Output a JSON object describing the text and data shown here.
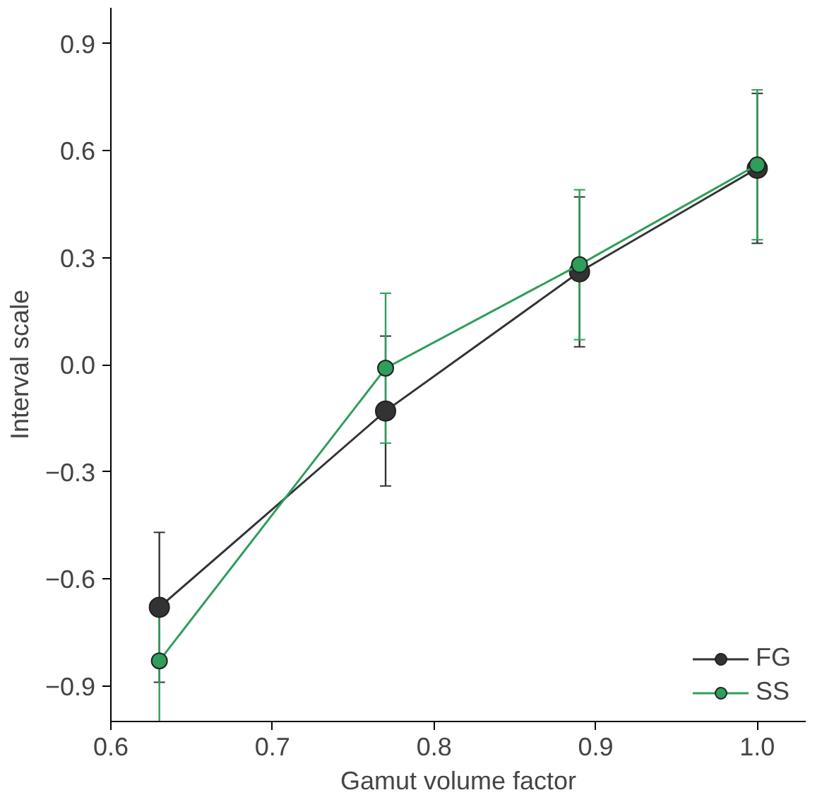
{
  "chart_data": {
    "type": "line",
    "xlabel": "Gamut volume factor",
    "ylabel": "Interval scale",
    "x": [
      0.63,
      0.77,
      0.89,
      1.0
    ],
    "series": [
      {
        "name": "FG",
        "color": "#333333",
        "values": [
          -0.68,
          -0.13,
          0.26,
          0.55
        ],
        "errors": [
          0.21,
          0.21,
          0.21,
          0.21
        ]
      },
      {
        "name": "SS",
        "color": "#2e9e5b",
        "values": [
          -0.83,
          -0.01,
          0.28,
          0.56
        ],
        "errors": [
          0.17,
          0.21,
          0.21,
          0.21
        ]
      }
    ],
    "xlim": [
      0.6,
      1.03
    ],
    "ylim": [
      -1.0,
      1.0
    ],
    "xticks": [
      0.6,
      0.7,
      0.8,
      0.9,
      {
        "value": 1.0,
        "label": "1.0"
      }
    ],
    "yticks": [
      -0.9,
      -0.6,
      -0.3,
      {
        "value": 0.0,
        "label": "0.0"
      },
      0.3,
      0.6,
      0.9
    ],
    "grid": false,
    "legend": "bottom right",
    "marker": "circle",
    "line_style": "solid"
  }
}
